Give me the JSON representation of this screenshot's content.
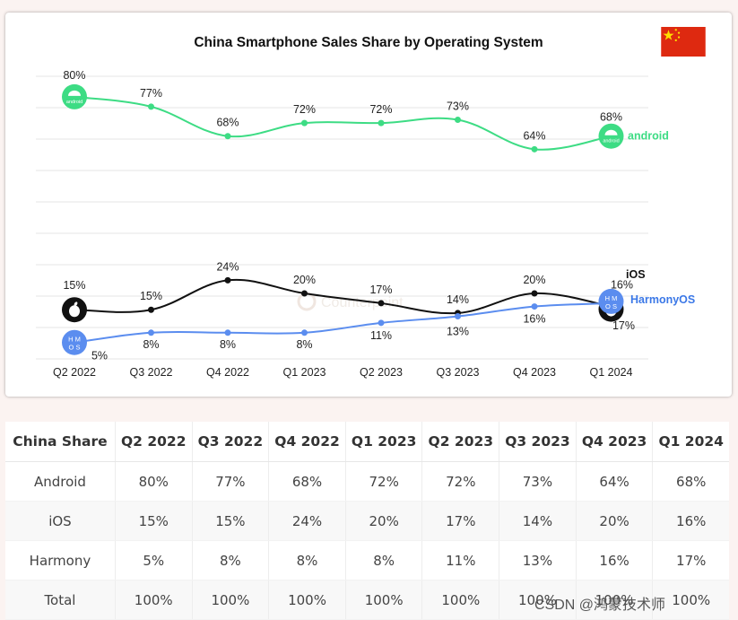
{
  "chart_data": {
    "type": "line",
    "title": "China Smartphone Sales Share by Operating System",
    "categories": [
      "Q2 2022",
      "Q3 2022",
      "Q4 2022",
      "Q1 2023",
      "Q2 2023",
      "Q3 2023",
      "Q4 2023",
      "Q1 2024"
    ],
    "series": [
      {
        "name": "android",
        "color": "#3ddc84",
        "label_color": "#3ddc84",
        "values": [
          80,
          77,
          68,
          72,
          72,
          73,
          64,
          68
        ]
      },
      {
        "name": "iOS",
        "color": "#111111",
        "label_color": "#111111",
        "values": [
          15,
          15,
          24,
          20,
          17,
          14,
          20,
          16
        ]
      },
      {
        "name": "HarmonyOS",
        "color": "#5b8def",
        "label_color": "#3b78e7",
        "values": [
          5,
          8,
          8,
          8,
          11,
          13,
          16,
          17
        ]
      }
    ],
    "data_labels": [
      [
        "80%",
        "77%",
        "68%",
        "72%",
        "72%",
        "73%",
        "64%",
        "68%"
      ],
      [
        "15%",
        "15%",
        "24%",
        "20%",
        "17%",
        "14%",
        "20%",
        "16%"
      ],
      [
        "5%",
        "8%",
        "8%",
        "8%",
        "11%",
        "13%",
        "16%",
        "17%"
      ]
    ],
    "ylim": [
      0,
      86
    ],
    "grid": true,
    "legend": "inline-right",
    "watermark": "Counterpoint"
  },
  "icons": {
    "android_badge": "android",
    "harmony_badge": [
      "H M",
      "O S"
    ]
  },
  "table": {
    "headers": [
      "China Share",
      "Q2 2022",
      "Q3 2022",
      "Q4 2022",
      "Q1 2023",
      "Q2 2023",
      "Q3 2023",
      "Q4 2023",
      "Q1 2024"
    ],
    "rows": [
      [
        "Android",
        "80%",
        "77%",
        "68%",
        "72%",
        "72%",
        "73%",
        "64%",
        "68%"
      ],
      [
        "iOS",
        "15%",
        "15%",
        "24%",
        "20%",
        "17%",
        "14%",
        "20%",
        "16%"
      ],
      [
        "Harmony",
        "5%",
        "8%",
        "8%",
        "8%",
        "11%",
        "13%",
        "16%",
        "17%"
      ],
      [
        "Total",
        "100%",
        "100%",
        "100%",
        "100%",
        "100%",
        "100%",
        "100%",
        "100%"
      ]
    ]
  },
  "footer": {
    "watermark": "CSDN @鸿蒙技术师"
  }
}
